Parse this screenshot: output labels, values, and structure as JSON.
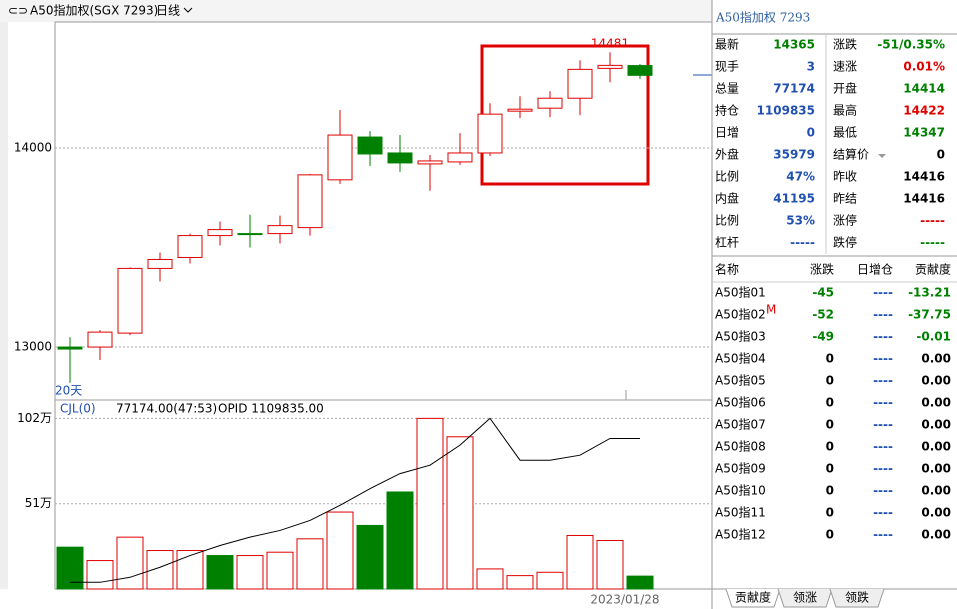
{
  "header": {
    "title": "A50指加权(SGX 7293)",
    "period": "日线"
  },
  "chart_data": [
    {
      "type": "candlestick",
      "annotation": "20天",
      "up_color": "#e00000",
      "down_color": "#008000",
      "grid": true,
      "ylim": [
        12734,
        14643
      ],
      "yticks": [
        13000,
        14000
      ],
      "open": [
        13000,
        13000,
        13070,
        13395,
        13450,
        13560,
        13570,
        13570,
        13600,
        13840,
        14055,
        13975,
        13920,
        13930,
        13975,
        14185,
        14200,
        14250,
        14400,
        14414
      ],
      "high": [
        13050,
        13085,
        13400,
        13475,
        13570,
        13630,
        13665,
        13660,
        13870,
        14190,
        14085,
        14065,
        13965,
        14075,
        14225,
        14260,
        14285,
        14440,
        14481,
        14422
      ],
      "low": [
        12820,
        12935,
        13060,
        13330,
        13420,
        13510,
        13500,
        13520,
        13560,
        13820,
        13910,
        13880,
        13785,
        13915,
        13960,
        14150,
        14155,
        14165,
        14330,
        14347
      ],
      "close": [
        12990,
        13075,
        13395,
        13440,
        13560,
        13590,
        13565,
        13610,
        13865,
        14065,
        13970,
        13925,
        13935,
        13975,
        14170,
        14195,
        14250,
        14395,
        14415,
        14365
      ]
    },
    {
      "type": "bar",
      "title": "CJL(0)",
      "info": "77174.00(47:53)",
      "info2": "OPID 1109835.00",
      "ylim": [
        0,
        110
      ],
      "yticks": [
        {
          "value": 51,
          "label": "51万"
        },
        {
          "value": 102,
          "label": "102万"
        }
      ],
      "values": [
        25,
        17,
        31,
        23,
        23,
        20,
        20,
        22,
        30,
        46,
        38,
        58,
        102,
        91,
        12,
        8,
        10,
        32,
        29,
        7.7
      ],
      "colors": [
        "#008000",
        "#e00000",
        "#e00000",
        "#e00000",
        "#e00000",
        "#008000",
        "#e00000",
        "#e00000",
        "#e00000",
        "#e00000",
        "#008000",
        "#008000",
        "#e00000",
        "#e00000",
        "#e00000",
        "#e00000",
        "#e00000",
        "#e00000",
        "#e00000",
        "#008000"
      ],
      "line_color": "#000000",
      "line_values": [
        4,
        4,
        7,
        13,
        20,
        26,
        31,
        35,
        41,
        50,
        60,
        69,
        74,
        86,
        102,
        77,
        77,
        80,
        90,
        90
      ]
    }
  ],
  "date_label": "2023/01/28",
  "quote": {
    "title": "A50指加权 7293",
    "rows": [
      [
        {
          "label": "最新",
          "value": "14365",
          "color": "#008000"
        },
        {
          "label": "涨跌",
          "value": "-51/0.35%",
          "color": "#008000"
        }
      ],
      [
        {
          "label": "现手",
          "value": "3",
          "color": "#2050b0"
        },
        {
          "label": "速涨",
          "value": "0.01%",
          "color": "#e00000"
        }
      ],
      [
        {
          "label": "总量",
          "value": "77174",
          "color": "#2050b0"
        },
        {
          "label": "开盘",
          "value": "14414",
          "color": "#008000"
        }
      ],
      [
        {
          "label": "持仓",
          "value": "1109835",
          "color": "#2050b0"
        },
        {
          "label": "最高",
          "value": "14422",
          "color": "#e00000"
        }
      ],
      [
        {
          "label": "日增",
          "value": "0",
          "color": "#2050b0"
        },
        {
          "label": "最低",
          "value": "14347",
          "color": "#008000"
        }
      ],
      [
        {
          "label": "外盘",
          "value": "35979",
          "color": "#2050b0"
        },
        {
          "label": "结算价",
          "value": "0",
          "color": "#000000"
        }
      ],
      [
        {
          "label": "比例",
          "value": "47%",
          "color": "#2050b0"
        },
        {
          "label": "昨收",
          "value": "14416",
          "color": "#000000"
        }
      ],
      [
        {
          "label": "内盘",
          "value": "41195",
          "color": "#2050b0"
        },
        {
          "label": "昨结",
          "value": "14416",
          "color": "#000000"
        }
      ],
      [
        {
          "label": "比例",
          "value": "53%",
          "color": "#2050b0"
        },
        {
          "label": "涨停",
          "value": "-----",
          "color": "#e00000"
        }
      ],
      [
        {
          "label": "杠杆",
          "value": "-----",
          "color": "#2050b0"
        },
        {
          "label": "跌停",
          "value": "-----",
          "color": "#008000"
        }
      ]
    ]
  },
  "contrib_table": {
    "headers": [
      "名称",
      "涨跌",
      "日增仓",
      "贡献度"
    ],
    "rows": [
      [
        "A50指01",
        "-45",
        "----",
        "-13.21"
      ],
      [
        "A50指02",
        "-52",
        "----",
        "-37.75",
        "M"
      ],
      [
        "A50指03",
        "-49",
        "----",
        "-0.01"
      ],
      [
        "A50指04",
        "0",
        "----",
        "0.00"
      ],
      [
        "A50指05",
        "0",
        "----",
        "0.00"
      ],
      [
        "A50指06",
        "0",
        "----",
        "0.00"
      ],
      [
        "A50指07",
        "0",
        "----",
        "0.00"
      ],
      [
        "A50指08",
        "0",
        "----",
        "0.00"
      ],
      [
        "A50指09",
        "0",
        "----",
        "0.00"
      ],
      [
        "A50指10",
        "0",
        "----",
        "0.00"
      ],
      [
        "A50指11",
        "0",
        "----",
        "0.00"
      ],
      [
        "A50指12",
        "0",
        "----",
        "0.00"
      ]
    ]
  },
  "tabs": [
    "贡献度",
    "领涨",
    "领跌"
  ]
}
